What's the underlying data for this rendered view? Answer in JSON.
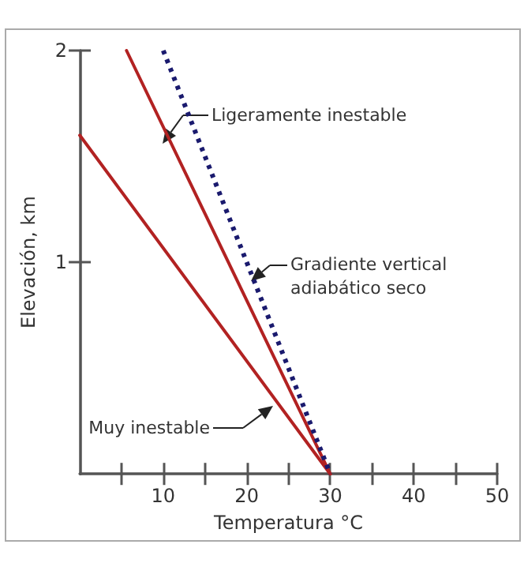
{
  "chart_data": {
    "type": "line",
    "xlabel": "Temperatura °C",
    "ylabel": "Elevación, km",
    "xlim": [
      0,
      50
    ],
    "ylim": [
      0,
      2
    ],
    "xticks": [
      {
        "value": 5,
        "label": null
      },
      10,
      {
        "value": 15,
        "label": null
      },
      20,
      {
        "value": 25,
        "label": null
      },
      30,
      {
        "value": 35,
        "label": null
      },
      40,
      {
        "value": 45,
        "label": null
      },
      50
    ],
    "yticks": [
      1,
      2
    ],
    "grid": false,
    "marker": "none",
    "series": [
      {
        "color": "#b22222",
        "x": [
          0,
          30
        ],
        "values": [
          1.6,
          0
        ],
        "line_style": "solid"
      },
      {
        "color": "#b22222",
        "x": [
          5.6,
          30
        ],
        "values": [
          2,
          0
        ],
        "line_style": "solid"
      },
      {
        "color": "#1a1a6e",
        "x": [
          10,
          30
        ],
        "values": [
          2,
          0
        ],
        "line_style": "dotted"
      }
    ],
    "annotations": [
      "Ligeramente inestable",
      "Gradiente vertical\nadiabático seco",
      "Muy inestable"
    ]
  }
}
